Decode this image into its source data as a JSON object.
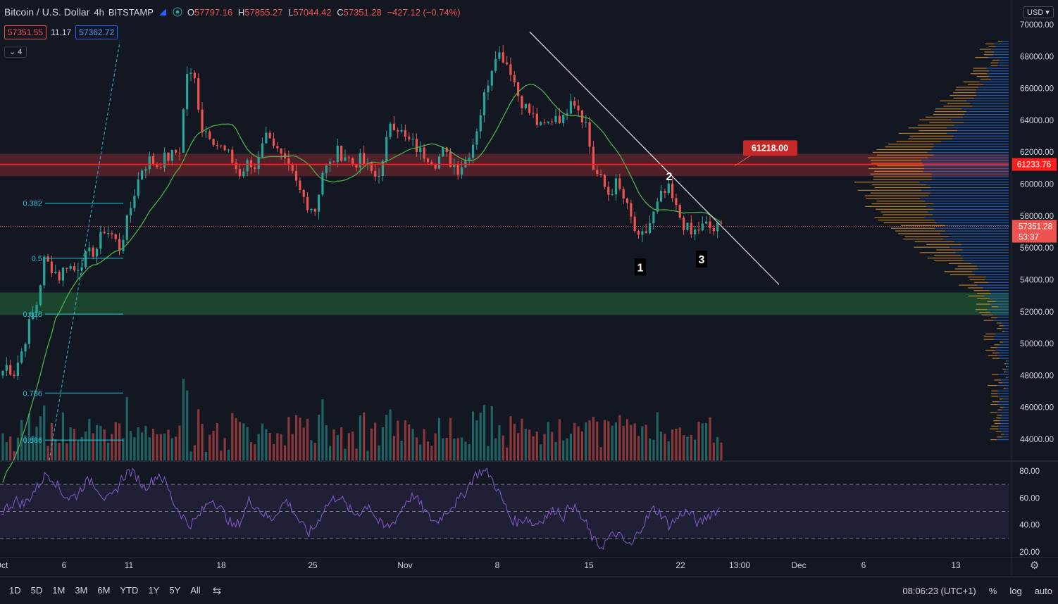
{
  "header": {
    "symbol": "Bitcoin / U.S. Dollar",
    "interval": "4h",
    "exchange": "BITSTAMP",
    "open_label": "O",
    "open": "57797.16",
    "high_label": "H",
    "high": "57855.27",
    "low_label": "L",
    "low": "57044.42",
    "close_label": "C",
    "close": "57351.28",
    "change": "−427.12 (−0.74%)"
  },
  "quote": {
    "bid": "57351.55",
    "spread": "11.17",
    "ask": "57362.72"
  },
  "indicators_collapsed": "4",
  "currency": "USD",
  "colors": {
    "up": "#26a69a",
    "down": "#ef5350",
    "bg": "#131722",
    "fib": "#26c6da",
    "rsi": "#7e57c2",
    "ma": "#4caf50"
  },
  "chart_data": {
    "type": "line",
    "price_axis": [
      "70000.00",
      "68000.00",
      "66000.00",
      "64000.00",
      "62000.00",
      "60000.00",
      "58000.00",
      "56000.00",
      "54000.00",
      "52000.00",
      "50000.00",
      "48000.00",
      "46000.00",
      "44000.00"
    ],
    "price_axis_values": [
      70000,
      68000,
      66000,
      64000,
      62000,
      60000,
      58000,
      56000,
      54000,
      52000,
      50000,
      48000,
      46000,
      44000
    ],
    "ylim": [
      43000,
      71000
    ],
    "rsi_axis": [
      "80.00",
      "60.00",
      "40.00",
      "20.00"
    ],
    "rsi_axis_values": [
      80,
      60,
      40,
      20
    ],
    "rsi_ylim": [
      14,
      86
    ],
    "time_axis": [
      "Oct",
      "6",
      "11",
      "18",
      "25",
      "Nov",
      "8",
      "15",
      "22",
      "13:00",
      "Dec",
      "6",
      "13"
    ],
    "close_path": [
      48000,
      48600,
      48200,
      49500,
      51200,
      52500,
      55200,
      54800,
      54200,
      55000,
      54600,
      55200,
      55600,
      56000,
      57200,
      56800,
      56000,
      57600,
      59500,
      61000,
      61500,
      61200,
      61600,
      61800,
      62200,
      67000,
      66500,
      63500,
      63200,
      62500,
      62000,
      61500,
      60500,
      61200,
      61000,
      62800,
      63200,
      62000,
      61200,
      60500,
      59500,
      58800,
      58400,
      60800,
      61200,
      62000,
      61800,
      61300,
      61500,
      61000,
      60500,
      61200,
      64000,
      63600,
      62800,
      62500,
      62000,
      61800,
      61400,
      62000,
      61400,
      61000,
      61500,
      62600,
      64500,
      66500,
      68300,
      68000,
      67200,
      65600,
      64800,
      64200,
      63500,
      63800,
      64400,
      64000,
      65600,
      64800,
      63800,
      61000,
      60200,
      59400,
      60000,
      59100,
      57800,
      56400,
      57000,
      58100,
      59200,
      59600,
      58400,
      57500,
      56800,
      57200,
      57400,
      57100,
      57351
    ],
    "last_price": "57351.28",
    "last_price_value": 57351.28,
    "countdown": "53:37",
    "resistance_price": "61233.76",
    "resistance_value": 61233.76,
    "resistance_zone": [
      60500,
      61900
    ],
    "support_zone": [
      51800,
      53200
    ],
    "label_price": "61218.00",
    "fib_levels": [
      {
        "label": "0.382",
        "value": 58800
      },
      {
        "label": "0.5",
        "value": 55350
      },
      {
        "label": "0.618",
        "value": 51850
      },
      {
        "label": "0.786",
        "value": 46900
      },
      {
        "label": "0.886",
        "value": 43950
      }
    ],
    "pattern_labels": [
      {
        "label": "1",
        "value": 54800
      },
      {
        "label": "2",
        "value": 60500
      },
      {
        "label": "3",
        "value": 55300
      }
    ],
    "rsi_levels": [
      70,
      50,
      30
    ],
    "rsi_path": [
      50,
      54,
      58,
      55,
      62,
      70,
      78,
      74,
      64,
      60,
      62,
      70,
      74,
      66,
      58,
      62,
      74,
      80,
      76,
      68,
      72,
      78,
      70,
      56,
      48,
      40,
      44,
      52,
      60,
      54,
      46,
      38,
      44,
      58,
      54,
      48,
      44,
      52,
      58,
      50,
      40,
      34,
      40,
      52,
      58,
      62,
      54,
      48,
      50,
      56,
      44,
      38,
      40,
      48,
      58,
      62,
      54,
      46,
      42,
      48,
      54,
      58,
      66,
      76,
      80,
      78,
      68,
      56,
      44,
      42,
      46,
      40,
      44,
      48,
      52,
      46,
      56,
      48,
      40,
      28,
      24,
      30,
      34,
      28,
      24,
      36,
      44,
      52,
      48,
      40,
      44,
      50,
      48,
      40,
      46,
      50,
      52
    ]
  },
  "toolbar": {
    "timeframes": [
      "1D",
      "5D",
      "1M",
      "3M",
      "6M",
      "YTD",
      "1Y",
      "5Y",
      "All"
    ],
    "clock": "08:06:23 (UTC+1)",
    "percent": "%",
    "log": "log",
    "auto": "auto"
  }
}
